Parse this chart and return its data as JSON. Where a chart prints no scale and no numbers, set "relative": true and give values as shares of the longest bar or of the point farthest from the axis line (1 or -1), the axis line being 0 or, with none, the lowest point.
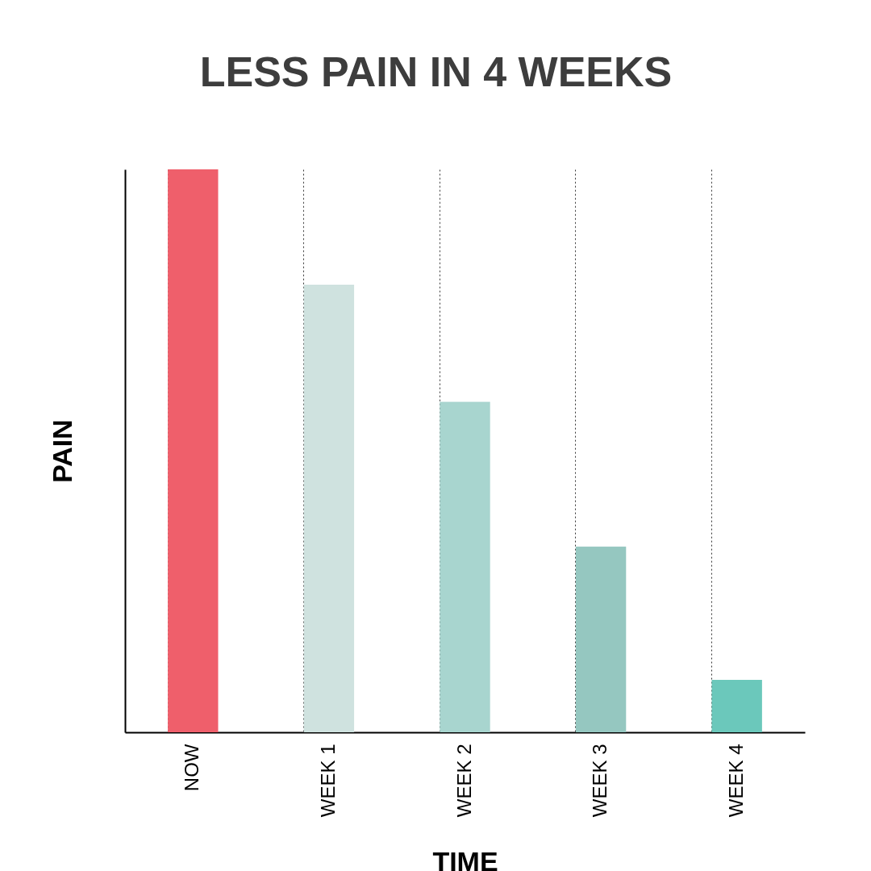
{
  "chart_data": {
    "type": "bar",
    "title": "LESS PAIN IN 4 WEEKS",
    "xlabel": "TIME",
    "ylabel": "PAIN",
    "relative": true,
    "grid": "x",
    "categories": [
      "NOW",
      "WEEK 1",
      "WEEK 2",
      "WEEK 3",
      "WEEK 4"
    ],
    "values": [
      1,
      0.795,
      0.587,
      0.33,
      0.093
    ],
    "colors": [
      "#ef5f6b",
      "#cfe2df",
      "#a8d5cf",
      "#95c7c0",
      "#6bc8bb"
    ]
  }
}
